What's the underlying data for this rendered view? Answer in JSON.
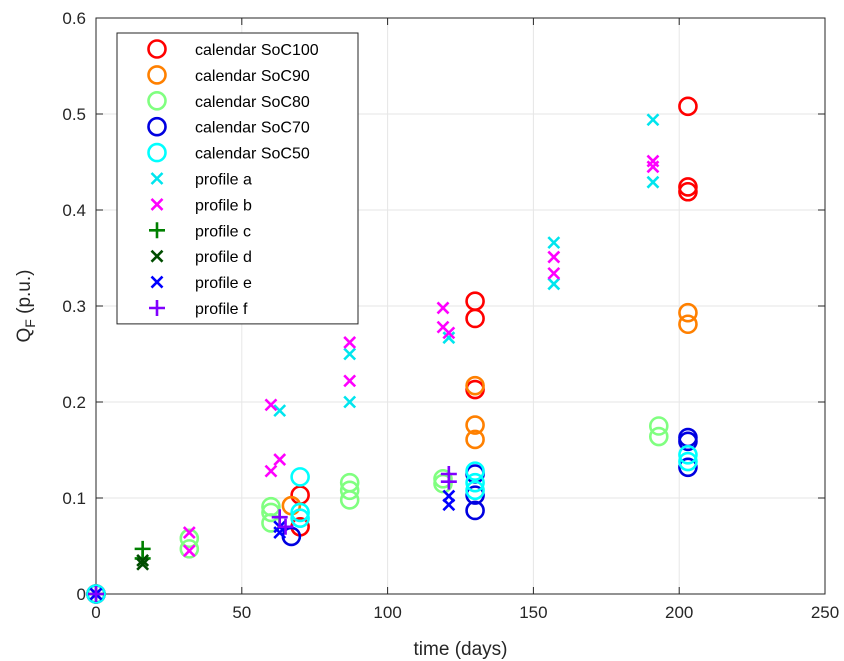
{
  "chart_data": {
    "type": "scatter",
    "title": "",
    "xlabel": "time (days)",
    "ylabel_main": "Q",
    "ylabel_sub": "F",
    "ylabel_unit": " (p.u.)",
    "xlim": [
      0,
      250
    ],
    "ylim": [
      0,
      0.6
    ],
    "xticks": [
      0,
      50,
      100,
      150,
      200,
      250
    ],
    "xtick_labels": [
      "0",
      "50",
      "100",
      "150",
      "200",
      "250"
    ],
    "yticks": [
      0,
      0.1,
      0.2,
      0.3,
      0.4,
      0.5,
      0.6
    ],
    "ytick_labels": [
      "0",
      "0.1",
      "0.2",
      "0.3",
      "0.4",
      "0.5",
      "0.6"
    ],
    "grid": true,
    "legend_position": "top-left",
    "series": [
      {
        "name": "calendar SoC100",
        "marker": "circle",
        "color": "#ff0000",
        "points": [
          [
            0,
            0
          ],
          [
            70,
            0.103
          ],
          [
            70,
            0.07
          ],
          [
            130,
            0.305
          ],
          [
            130,
            0.287
          ],
          [
            130,
            0.213
          ],
          [
            203,
            0.508
          ],
          [
            203,
            0.424
          ],
          [
            203,
            0.419
          ]
        ]
      },
      {
        "name": "calendar SoC90",
        "marker": "circle",
        "color": "#ff8000",
        "points": [
          [
            0,
            0
          ],
          [
            67,
            0.092
          ],
          [
            130,
            0.217
          ],
          [
            130,
            0.176
          ],
          [
            130,
            0.161
          ],
          [
            203,
            0.293
          ],
          [
            203,
            0.281
          ]
        ]
      },
      {
        "name": "calendar SoC80",
        "marker": "circle",
        "color": "#80ff80",
        "points": [
          [
            0,
            0
          ],
          [
            32,
            0.058
          ],
          [
            32,
            0.047
          ],
          [
            60,
            0.091
          ],
          [
            60,
            0.085
          ],
          [
            60,
            0.074
          ],
          [
            87,
            0.116
          ],
          [
            87,
            0.108
          ],
          [
            87,
            0.098
          ],
          [
            119,
            0.12
          ],
          [
            119,
            0.115
          ],
          [
            193,
            0.175
          ],
          [
            193,
            0.164
          ]
        ]
      },
      {
        "name": "calendar SoC70",
        "marker": "circle",
        "color": "#0000e0",
        "points": [
          [
            0,
            0
          ],
          [
            67,
            0.06
          ],
          [
            130,
            0.125
          ],
          [
            130,
            0.103
          ],
          [
            130,
            0.087
          ],
          [
            203,
            0.163
          ],
          [
            203,
            0.159
          ],
          [
            203,
            0.132
          ]
        ]
      },
      {
        "name": "calendar SoC50",
        "marker": "circle",
        "color": "#00ffff",
        "points": [
          [
            0,
            0
          ],
          [
            70,
            0.122
          ],
          [
            70,
            0.085
          ],
          [
            70,
            0.079
          ],
          [
            130,
            0.128
          ],
          [
            130,
            0.116
          ],
          [
            130,
            0.108
          ],
          [
            203,
            0.145
          ],
          [
            203,
            0.138
          ]
        ]
      },
      {
        "name": "profile a",
        "marker": "x",
        "color": "#00e5ee",
        "points": [
          [
            0,
            0
          ],
          [
            63,
            0.191
          ],
          [
            87,
            0.25
          ],
          [
            87,
            0.2
          ],
          [
            121,
            0.267
          ],
          [
            157,
            0.366
          ],
          [
            157,
            0.323
          ],
          [
            191,
            0.494
          ],
          [
            191,
            0.429
          ]
        ]
      },
      {
        "name": "profile b",
        "marker": "x",
        "color": "#ff00ff",
        "points": [
          [
            0,
            0
          ],
          [
            32,
            0.064
          ],
          [
            32,
            0.045
          ],
          [
            60,
            0.197
          ],
          [
            60,
            0.128
          ],
          [
            63,
            0.14
          ],
          [
            87,
            0.262
          ],
          [
            87,
            0.222
          ],
          [
            119,
            0.298
          ],
          [
            119,
            0.278
          ],
          [
            121,
            0.272
          ],
          [
            157,
            0.351
          ],
          [
            157,
            0.334
          ],
          [
            191,
            0.451
          ],
          [
            191,
            0.445
          ]
        ]
      },
      {
        "name": "profile c",
        "marker": "plus",
        "color": "#008000",
        "points": [
          [
            0,
            0
          ],
          [
            16,
            0.047
          ],
          [
            16,
            0.037
          ]
        ]
      },
      {
        "name": "profile d",
        "marker": "x",
        "color": "#004d00",
        "points": [
          [
            0,
            0
          ],
          [
            16,
            0.035
          ],
          [
            16,
            0.031
          ]
        ]
      },
      {
        "name": "profile e",
        "marker": "x",
        "color": "#0000ff",
        "points": [
          [
            0,
            0
          ],
          [
            63,
            0.07
          ],
          [
            63,
            0.064
          ],
          [
            121,
            0.102
          ],
          [
            121,
            0.093
          ]
        ]
      },
      {
        "name": "profile f",
        "marker": "plus",
        "color": "#8000ff",
        "points": [
          [
            0,
            0
          ],
          [
            63,
            0.08
          ],
          [
            65,
            0.07
          ],
          [
            121,
            0.125
          ],
          [
            121,
            0.117
          ]
        ]
      }
    ]
  }
}
